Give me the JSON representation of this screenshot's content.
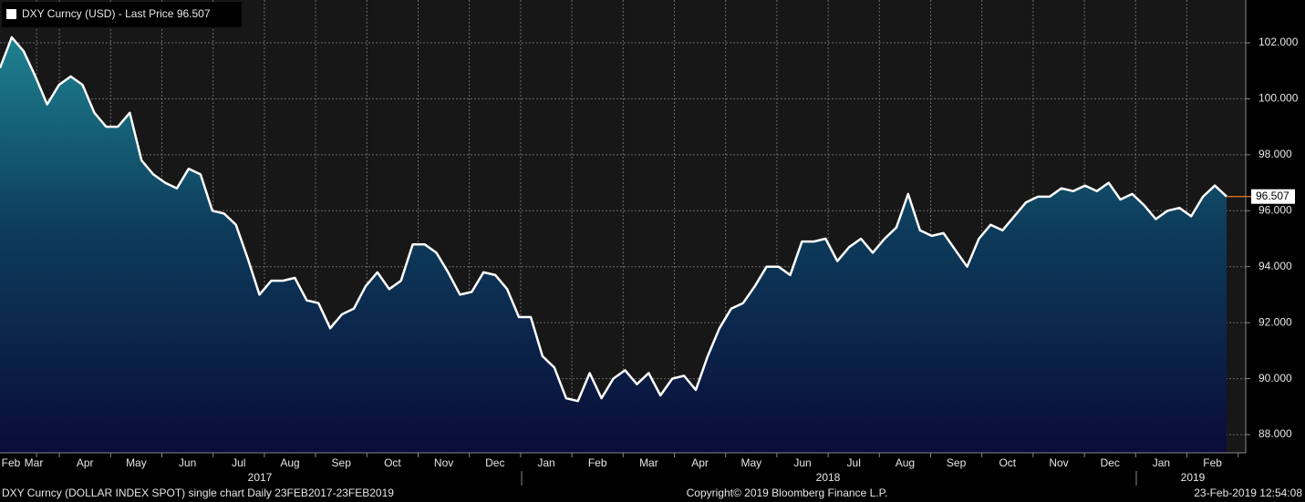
{
  "chart_data": {
    "type": "area",
    "title": "DXY Curncy (USD) - Last Price 96.507",
    "footer_left": "DXY Curncy (DOLLAR INDEX SPOT) single chart  Daily 23FEB2017-23FEB2019",
    "footer_center": "Copyright© 2019 Bloomberg Finance L.P.",
    "footer_right": "23-Feb-2019 12:54:08",
    "months": [
      "Feb",
      "Mar",
      "Apr",
      "May",
      "Jun",
      "Jul",
      "Aug",
      "Sep",
      "Oct",
      "Nov",
      "Dec",
      "Jan",
      "Feb",
      "Mar",
      "Apr",
      "May",
      "Jun",
      "Jul",
      "Aug",
      "Sep",
      "Oct",
      "Nov",
      "Dec",
      "Jan",
      "Feb"
    ],
    "years": [
      "2017",
      "2018",
      "2019"
    ],
    "series": [
      {
        "name": "DXY Curncy",
        "color": "#ffffff",
        "values": [
          101.1,
          102.2,
          101.7,
          100.8,
          99.8,
          100.5,
          100.8,
          100.5,
          99.5,
          99.0,
          99.0,
          99.5,
          97.8,
          97.3,
          97.0,
          96.8,
          97.5,
          97.3,
          96.0,
          95.9,
          95.5,
          94.3,
          93.0,
          93.5,
          93.5,
          93.6,
          92.8,
          92.7,
          91.8,
          92.3,
          92.5,
          93.3,
          93.8,
          93.2,
          93.5,
          94.8,
          94.8,
          94.5,
          93.8,
          93.0,
          93.1,
          93.8,
          93.7,
          93.2,
          92.2,
          92.2,
          90.8,
          90.4,
          89.3,
          89.2,
          90.2,
          89.3,
          90.0,
          90.3,
          89.8,
          90.2,
          89.4,
          90.0,
          90.1,
          89.6,
          90.8,
          91.8,
          92.5,
          92.7,
          93.3,
          94.0,
          94.0,
          93.7,
          94.9,
          94.9,
          95.0,
          94.2,
          94.7,
          95.0,
          94.5,
          95.0,
          95.4,
          96.6,
          95.3,
          95.1,
          95.2,
          94.6,
          94.0,
          95.0,
          95.5,
          95.3,
          95.8,
          96.3,
          96.5,
          96.5,
          96.8,
          96.7,
          96.9,
          96.7,
          97.0,
          96.4,
          96.6,
          96.2,
          95.7,
          96.0,
          96.1,
          95.8,
          96.5,
          96.9,
          96.507
        ]
      }
    ],
    "last_price_color": "#f07a1a",
    "ylim": [
      87.35,
      103.53
    ],
    "yticks": [
      {
        "value": 88,
        "label": "88.000"
      },
      {
        "value": 90,
        "label": "90.000"
      },
      {
        "value": 92,
        "label": "92.000"
      },
      {
        "value": 94,
        "label": "94.000"
      },
      {
        "value": 96,
        "label": "96.000"
      },
      {
        "value": 98,
        "label": "98.000"
      },
      {
        "value": 100,
        "label": "100.000"
      },
      {
        "value": 102,
        "label": "102.000"
      }
    ],
    "grid": true
  }
}
